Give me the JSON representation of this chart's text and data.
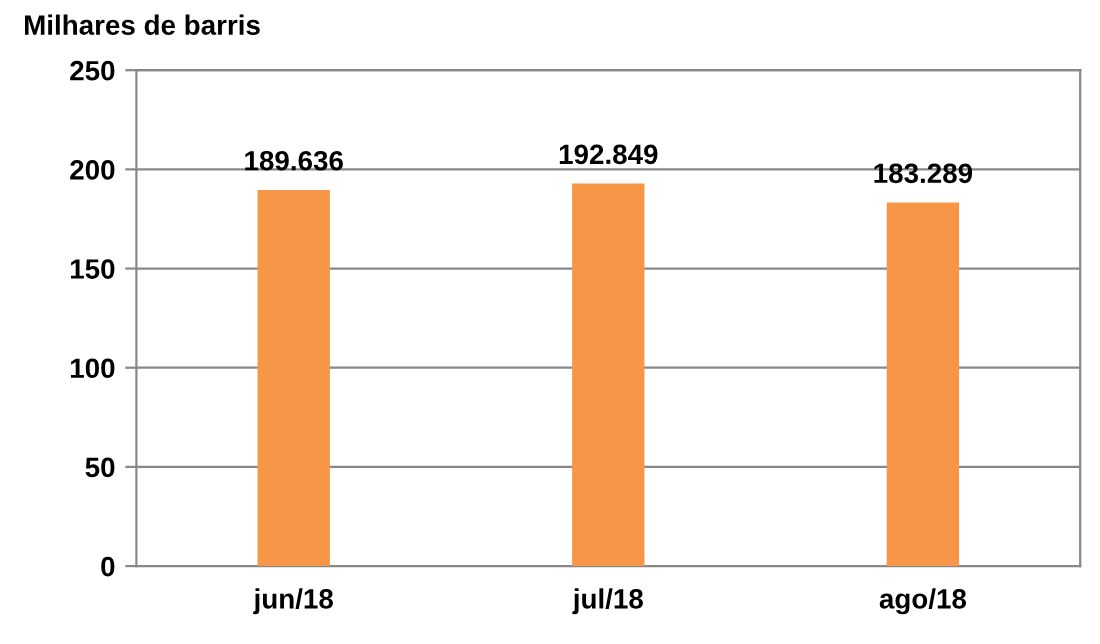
{
  "chart_data": {
    "type": "bar",
    "ylabel": "Milhares de barris",
    "categories": [
      "jun/18",
      "jul/18",
      "ago/18"
    ],
    "values": [
      189.636,
      192.849,
      183.289
    ],
    "value_labels": [
      "189.636",
      "192.849",
      "183.289"
    ],
    "color": "#f79646",
    "ylim": [
      0,
      250
    ],
    "yticks": [
      0,
      50,
      100,
      150,
      200,
      250
    ],
    "grid": "y",
    "legend": false
  }
}
